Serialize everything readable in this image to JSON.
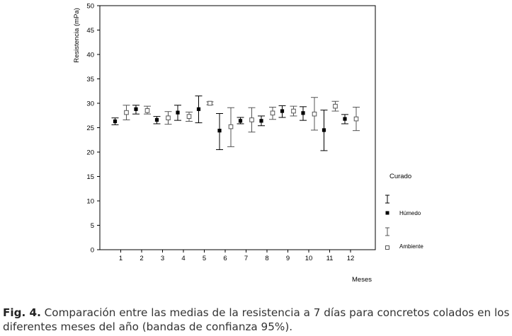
{
  "chart_data": {
    "type": "errorbar",
    "ylabel": "Resistencia (mPa)",
    "xlabel": "Meses",
    "ylim": [
      0,
      50
    ],
    "yticks": [
      0,
      5,
      10,
      15,
      20,
      25,
      30,
      35,
      40,
      45,
      50
    ],
    "categories": [
      "1",
      "2",
      "3",
      "4",
      "5",
      "6",
      "7",
      "8",
      "9",
      "10",
      "11",
      "12"
    ],
    "legend": {
      "title": "Curado",
      "position": "right"
    },
    "series": [
      {
        "name": "Húmedo",
        "marker": "filled-square",
        "color": "#000000",
        "mean": [
          26.3,
          28.8,
          26.6,
          28.1,
          28.8,
          24.4,
          26.4,
          26.4,
          28.4,
          28.0,
          24.5,
          26.8
        ],
        "lower": [
          25.6,
          27.8,
          25.8,
          26.5,
          26.0,
          20.5,
          25.8,
          25.4,
          27.1,
          26.5,
          20.3,
          25.8
        ],
        "upper": [
          27.0,
          29.6,
          27.3,
          29.6,
          31.5,
          27.9,
          27.1,
          27.4,
          29.5,
          29.3,
          28.6,
          27.7
        ]
      },
      {
        "name": "Ambiente",
        "marker": "open-square",
        "color": "#555555",
        "mean": [
          28.1,
          28.5,
          27.0,
          27.3,
          30.0,
          25.2,
          26.6,
          28.0,
          28.4,
          27.8,
          29.4,
          26.8
        ],
        "lower": [
          26.6,
          27.8,
          25.7,
          26.3,
          29.7,
          21.1,
          24.1,
          26.7,
          27.4,
          24.5,
          28.4,
          24.4
        ],
        "upper": [
          29.6,
          29.4,
          28.3,
          28.2,
          30.3,
          29.1,
          29.1,
          29.2,
          29.4,
          31.2,
          30.4,
          29.2
        ]
      }
    ]
  },
  "caption": {
    "label": "Fig. 4.",
    "text": " Comparación entre las medias de la resistencia a 7 días para concretos colados en los diferentes meses del año (bandas de confianza 95%)."
  }
}
